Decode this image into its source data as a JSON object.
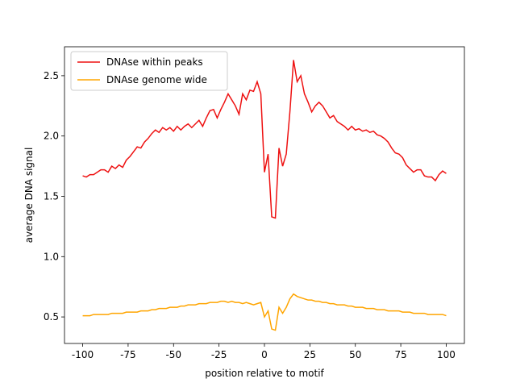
{
  "chart_data": {
    "type": "line",
    "xlabel": "position relative to motif",
    "ylabel": "average DNA signal",
    "x": [
      -100,
      -98,
      -96,
      -94,
      -92,
      -90,
      -88,
      -86,
      -84,
      -82,
      -80,
      -78,
      -76,
      -74,
      -72,
      -70,
      -68,
      -66,
      -64,
      -62,
      -60,
      -58,
      -56,
      -54,
      -52,
      -50,
      -48,
      -46,
      -44,
      -42,
      -40,
      -38,
      -36,
      -34,
      -32,
      -30,
      -28,
      -26,
      -24,
      -22,
      -20,
      -18,
      -16,
      -14,
      -12,
      -10,
      -8,
      -6,
      -4,
      -2,
      0,
      2,
      4,
      6,
      8,
      10,
      12,
      14,
      16,
      18,
      20,
      22,
      24,
      26,
      28,
      30,
      32,
      34,
      36,
      38,
      40,
      42,
      44,
      46,
      48,
      50,
      52,
      54,
      56,
      58,
      60,
      62,
      64,
      66,
      68,
      70,
      72,
      74,
      76,
      78,
      80,
      82,
      84,
      86,
      88,
      90,
      92,
      94,
      96,
      98,
      100
    ],
    "series": [
      {
        "name": "DNAse within peaks",
        "color": "#ee1111",
        "values": [
          1.67,
          1.66,
          1.68,
          1.68,
          1.7,
          1.72,
          1.72,
          1.7,
          1.75,
          1.73,
          1.76,
          1.74,
          1.8,
          1.83,
          1.87,
          1.91,
          1.9,
          1.95,
          1.98,
          2.02,
          2.05,
          2.03,
          2.07,
          2.05,
          2.07,
          2.04,
          2.08,
          2.05,
          2.08,
          2.1,
          2.07,
          2.1,
          2.13,
          2.08,
          2.15,
          2.21,
          2.22,
          2.15,
          2.22,
          2.28,
          2.35,
          2.3,
          2.25,
          2.18,
          2.35,
          2.3,
          2.38,
          2.37,
          2.45,
          2.35,
          1.7,
          1.85,
          1.33,
          1.32,
          1.9,
          1.75,
          1.85,
          2.2,
          2.63,
          2.45,
          2.5,
          2.35,
          2.28,
          2.2,
          2.25,
          2.28,
          2.25,
          2.2,
          2.15,
          2.17,
          2.12,
          2.1,
          2.08,
          2.05,
          2.08,
          2.05,
          2.06,
          2.04,
          2.05,
          2.03,
          2.04,
          2.01,
          2.0,
          1.98,
          1.95,
          1.9,
          1.86,
          1.85,
          1.82,
          1.76,
          1.73,
          1.7,
          1.72,
          1.72,
          1.67,
          1.66,
          1.66,
          1.63,
          1.68,
          1.71,
          1.69
        ]
      },
      {
        "name": "DNAse genome wide",
        "color": "#ffa500",
        "values": [
          0.51,
          0.51,
          0.51,
          0.52,
          0.52,
          0.52,
          0.52,
          0.52,
          0.53,
          0.53,
          0.53,
          0.53,
          0.54,
          0.54,
          0.54,
          0.54,
          0.55,
          0.55,
          0.55,
          0.56,
          0.56,
          0.57,
          0.57,
          0.57,
          0.58,
          0.58,
          0.58,
          0.59,
          0.59,
          0.6,
          0.6,
          0.6,
          0.61,
          0.61,
          0.61,
          0.62,
          0.62,
          0.62,
          0.63,
          0.63,
          0.62,
          0.63,
          0.62,
          0.62,
          0.61,
          0.62,
          0.61,
          0.6,
          0.61,
          0.62,
          0.5,
          0.55,
          0.4,
          0.39,
          0.58,
          0.53,
          0.58,
          0.65,
          0.69,
          0.67,
          0.66,
          0.65,
          0.64,
          0.64,
          0.63,
          0.63,
          0.62,
          0.62,
          0.61,
          0.61,
          0.6,
          0.6,
          0.6,
          0.59,
          0.59,
          0.58,
          0.58,
          0.58,
          0.57,
          0.57,
          0.57,
          0.56,
          0.56,
          0.56,
          0.55,
          0.55,
          0.55,
          0.55,
          0.54,
          0.54,
          0.54,
          0.53,
          0.53,
          0.53,
          0.53,
          0.52,
          0.52,
          0.52,
          0.52,
          0.52,
          0.51
        ]
      }
    ],
    "xlim": [
      -110,
      110
    ],
    "ylim": [
      0.28,
      2.74
    ],
    "xticks": [
      -100,
      -75,
      -50,
      -25,
      0,
      25,
      50,
      75,
      100
    ],
    "yticks": [
      0.5,
      {
        "value": 1,
        "label": "1.0"
      },
      1.5,
      {
        "value": 2,
        "label": "2.0"
      },
      2.5
    ],
    "legend": "upper left"
  }
}
